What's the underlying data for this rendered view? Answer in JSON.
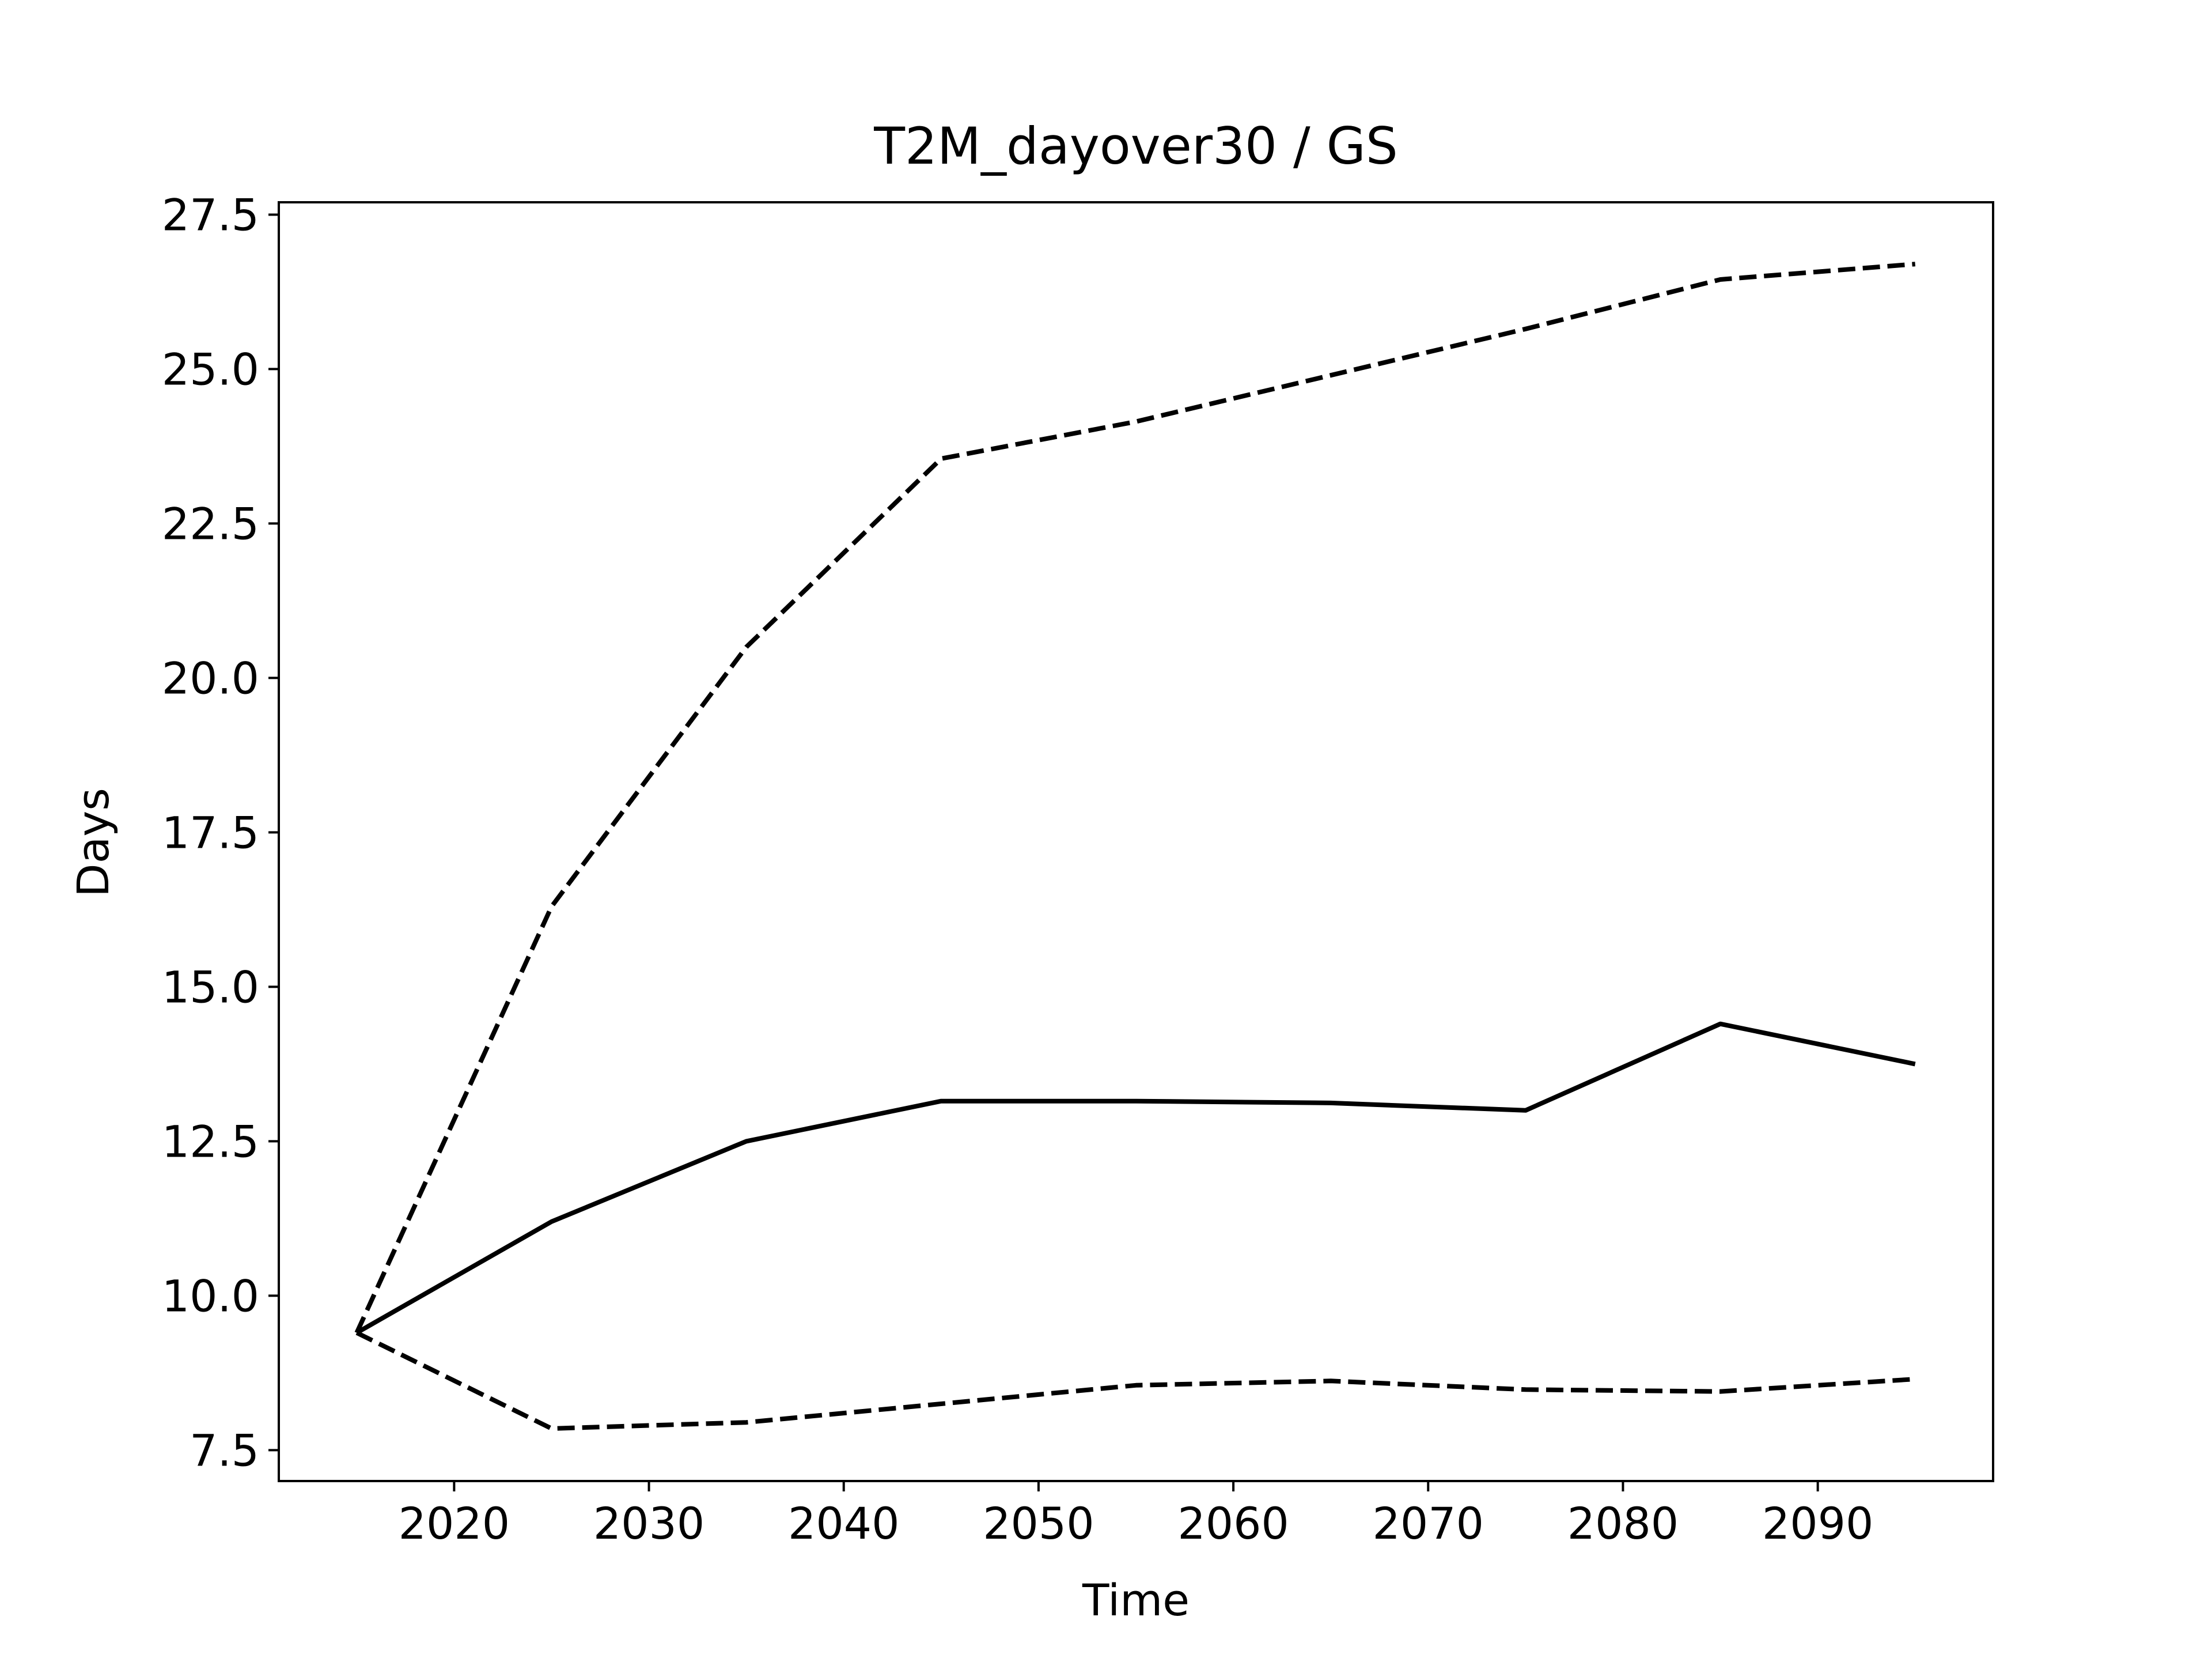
{
  "chart_data": {
    "type": "line",
    "title": "T2M_dayover30 / GS",
    "xlabel": "Time",
    "ylabel": "Days",
    "xlim": [
      2011,
      2099
    ],
    "ylim": [
      7.0,
      27.7
    ],
    "grid": false,
    "xticks": [
      2020,
      2030,
      2040,
      2050,
      2060,
      2070,
      2080,
      2090
    ],
    "xtick_labels": [
      "2020",
      "2030",
      "2040",
      "2050",
      "2060",
      "2070",
      "2080",
      "2090"
    ],
    "yticks": [
      7.5,
      10.0,
      12.5,
      15.0,
      17.5,
      20.0,
      22.5,
      25.0,
      27.5
    ],
    "ytick_labels": [
      "7.5",
      "10.0",
      "12.5",
      "15.0",
      "17.5",
      "20.0",
      "22.5",
      "25.0",
      "27.5"
    ],
    "x": [
      2015,
      2025,
      2035,
      2045,
      2055,
      2065,
      2075,
      2085,
      2095
    ],
    "series": [
      {
        "style": "solid",
        "color": "#000000",
        "values": [
          9.4,
          11.2,
          12.5,
          13.15,
          13.15,
          13.12,
          13.0,
          14.4,
          13.75
        ]
      },
      {
        "style": "dashed",
        "color": "#000000",
        "values": [
          9.4,
          16.3,
          20.5,
          23.55,
          24.15,
          24.9,
          25.65,
          26.45,
          26.7
        ]
      },
      {
        "style": "dashed",
        "color": "#000000",
        "values": [
          9.4,
          7.85,
          7.95,
          8.25,
          8.55,
          8.62,
          8.48,
          8.45,
          8.65
        ]
      }
    ]
  }
}
